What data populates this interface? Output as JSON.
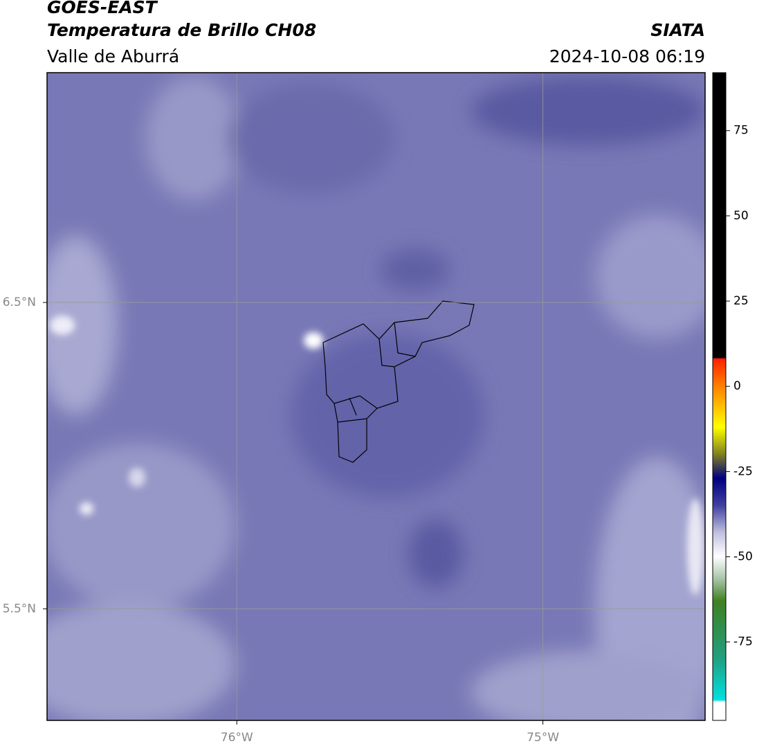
{
  "header": {
    "title": "GOES-EAST",
    "subtitle": "Temperatura de Brillo CH08",
    "region": "Valle de Aburrá",
    "source": "SIATA",
    "datetime": "2024-10-08 06:19"
  },
  "map": {
    "xlim": [
      -76.62,
      -74.47
    ],
    "ylim": [
      5.136,
      7.25
    ],
    "xticks": [
      {
        "value": -76,
        "label": "76°W"
      },
      {
        "value": -75,
        "label": "75°W"
      }
    ],
    "yticks": [
      {
        "value": 6.5,
        "label": "6.5°N"
      },
      {
        "value": 5.5,
        "label": "5.5°N"
      }
    ],
    "grid": true
  },
  "colorbar": {
    "lim": [
      -98,
      92
    ],
    "ticks": [
      75,
      50,
      25,
      0,
      -25,
      -50,
      -75
    ]
  }
}
